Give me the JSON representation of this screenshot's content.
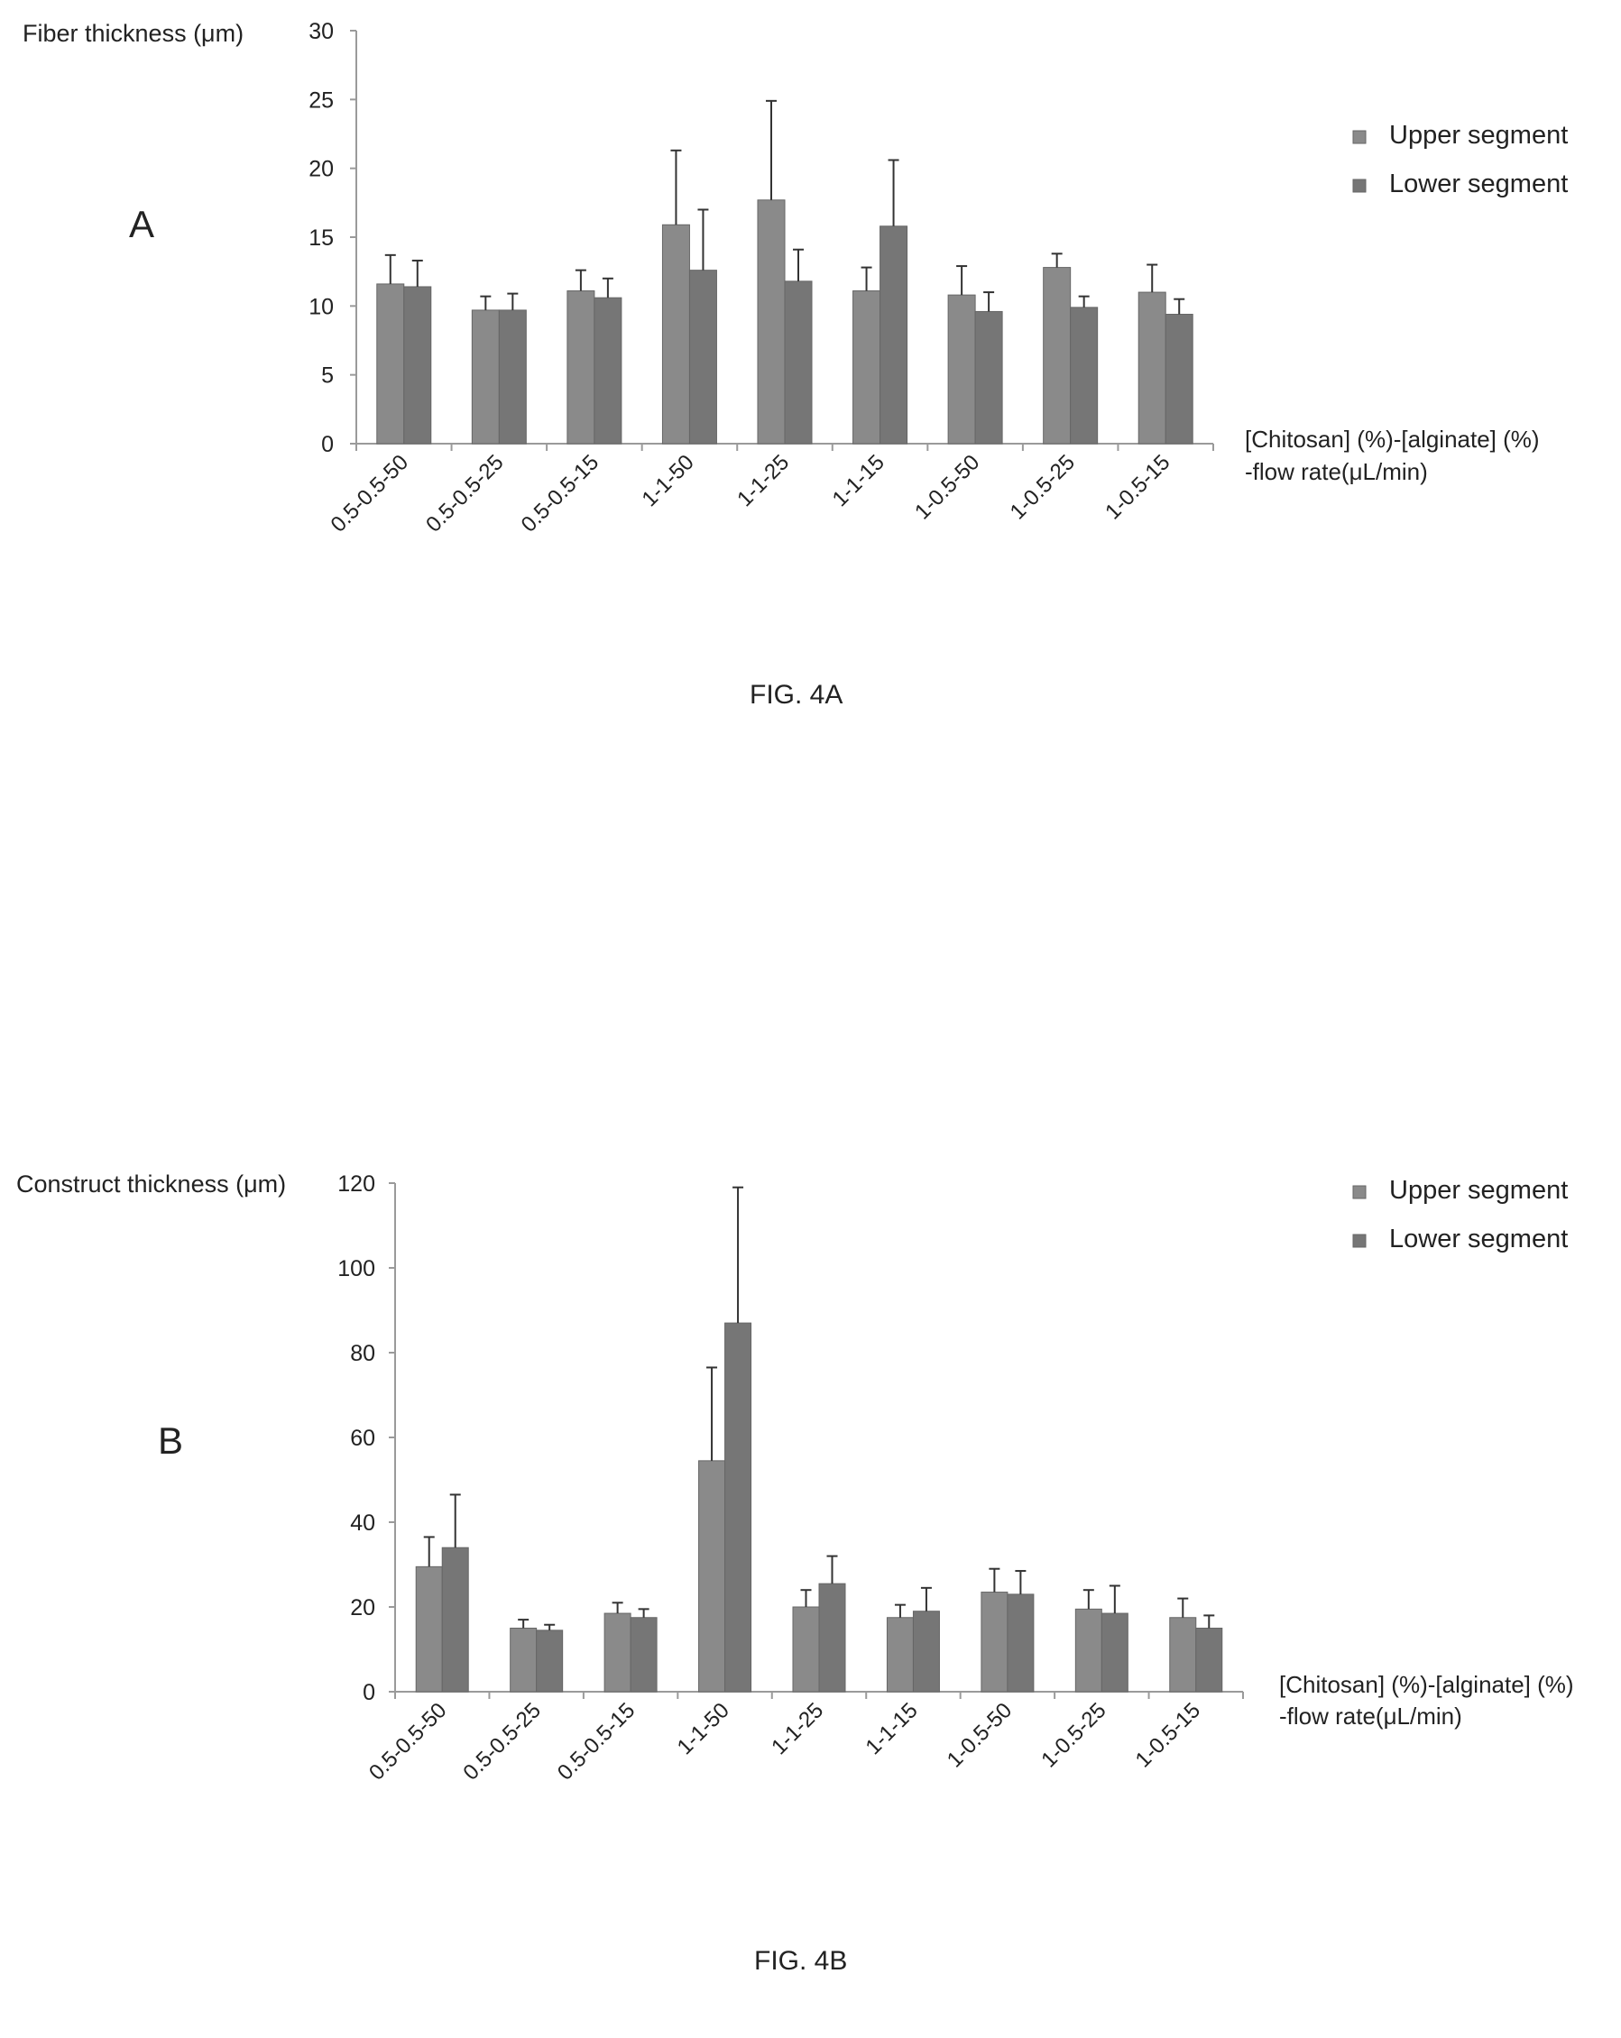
{
  "chart_data": [
    {
      "type": "bar",
      "panel_letter": "A",
      "caption": "FIG. 4A",
      "ylabel": "Fiber thickness (μm)",
      "xlabel_line1": "[Chitosan] (%)-[alginate] (%)",
      "xlabel_line2": "-flow rate(μL/min)",
      "ylim": [
        0,
        30
      ],
      "yticks": [
        0,
        5,
        10,
        15,
        20,
        25,
        30
      ],
      "legend_position": "top-right",
      "categories": [
        "0.5-0.5-50",
        "0.5-0.5-25",
        "0.5-0.5-15",
        "1-1-50",
        "1-1-25",
        "1-1-15",
        "1-0.5-50",
        "1-0.5-25",
        "1-0.5-15"
      ],
      "series": [
        {
          "name": "Upper segment",
          "color": "#8a8a8a",
          "values": [
            11.6,
            9.7,
            11.1,
            15.9,
            17.7,
            11.1,
            10.8,
            12.8,
            11.0
          ],
          "errors": [
            2.1,
            1.0,
            1.5,
            5.4,
            7.2,
            1.7,
            2.1,
            1.0,
            2.0
          ]
        },
        {
          "name": "Lower segment",
          "color": "#767676",
          "values": [
            11.4,
            9.7,
            10.6,
            12.6,
            11.8,
            15.8,
            9.6,
            9.9,
            9.4
          ],
          "errors": [
            1.9,
            1.2,
            1.4,
            4.4,
            2.3,
            4.8,
            1.4,
            0.8,
            1.1
          ]
        }
      ]
    },
    {
      "type": "bar",
      "panel_letter": "B",
      "caption": "FIG. 4B",
      "ylabel": "Construct thickness (μm)",
      "xlabel_line1": "[Chitosan] (%)-[alginate] (%)",
      "xlabel_line2": "-flow rate(μL/min)",
      "ylim": [
        0,
        120
      ],
      "yticks": [
        0,
        20,
        40,
        60,
        80,
        100,
        120
      ],
      "legend_position": "top-right",
      "categories": [
        "0.5-0.5-50",
        "0.5-0.5-25",
        "0.5-0.5-15",
        "1-1-50",
        "1-1-25",
        "1-1-15",
        "1-0.5-50",
        "1-0.5-25",
        "1-0.5-15"
      ],
      "series": [
        {
          "name": "Upper segment",
          "color": "#8a8a8a",
          "values": [
            29.5,
            15.0,
            18.5,
            54.5,
            20.0,
            17.5,
            23.5,
            19.5,
            17.5
          ],
          "errors": [
            7.0,
            2.0,
            2.5,
            22.0,
            4.0,
            3.0,
            5.5,
            4.5,
            4.5
          ]
        },
        {
          "name": "Lower segment",
          "color": "#767676",
          "values": [
            34.0,
            14.5,
            17.5,
            87.0,
            25.5,
            19.0,
            23.0,
            18.5,
            15.0
          ],
          "errors": [
            12.5,
            1.3,
            2.0,
            32.0,
            6.5,
            5.5,
            5.5,
            6.5,
            3.0
          ]
        }
      ]
    }
  ]
}
